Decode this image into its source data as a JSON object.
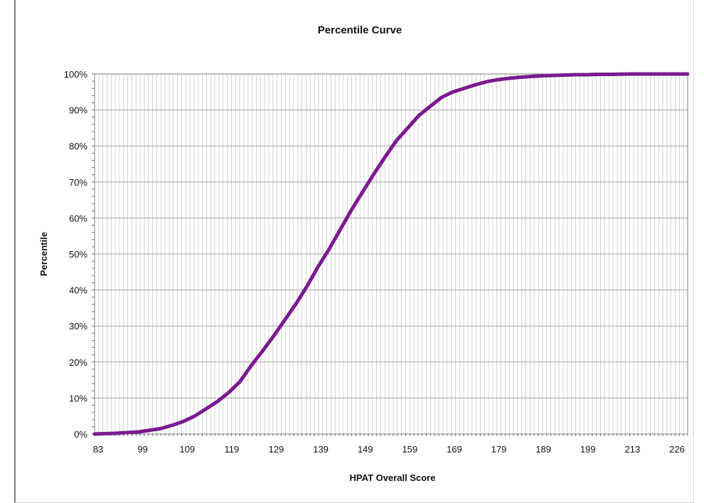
{
  "chart_data": {
    "type": "line",
    "title": "Percentile Curve",
    "xlabel": "HPAT Overall Score",
    "ylabel": "Percentile",
    "x_tick_labels": [
      "83",
      "99",
      "109",
      "119",
      "129",
      "139",
      "149",
      "159",
      "169",
      "179",
      "189",
      "199",
      "213",
      "226"
    ],
    "y_tick_labels": [
      "0%",
      "10%",
      "20%",
      "30%",
      "40%",
      "50%",
      "60%",
      "70%",
      "80%",
      "90%",
      "100%"
    ],
    "ylim": [
      0,
      100
    ],
    "grid": true,
    "line_color": "#7b1a8f",
    "series": [
      {
        "points_basis": "fraction of horizontal axis extent",
        "x": [
          0.0,
          0.036,
          0.075,
          0.112,
          0.132,
          0.15,
          0.169,
          0.188,
          0.207,
          0.226,
          0.245,
          0.264,
          0.283,
          0.301,
          0.32,
          0.339,
          0.358,
          0.377,
          0.396,
          0.415,
          0.434,
          0.453,
          0.472,
          0.49,
          0.509,
          0.528,
          0.547,
          0.566,
          0.585,
          0.604,
          0.623,
          0.642,
          0.66,
          0.679,
          0.698,
          0.717,
          0.736,
          0.755,
          0.774,
          0.793,
          0.811,
          0.83,
          0.849,
          0.868,
          0.887,
          0.906,
          0.925,
          0.943,
          0.962,
          0.981,
          1.0
        ],
        "values": [
          0,
          0.2,
          0.6,
          1.5,
          2.5,
          3.5,
          5,
          7,
          9,
          11.5,
          14.5,
          19,
          23,
          27,
          31.5,
          36,
          41,
          46.5,
          51.5,
          57,
          62.5,
          67.5,
          72.5,
          77,
          81.5,
          85,
          88.5,
          91,
          93.5,
          95,
          96,
          97,
          97.8,
          98.4,
          98.8,
          99.1,
          99.3,
          99.5,
          99.6,
          99.7,
          99.8,
          99.8,
          99.9,
          99.9,
          99.95,
          100,
          100,
          100,
          100,
          100,
          100
        ]
      }
    ]
  }
}
